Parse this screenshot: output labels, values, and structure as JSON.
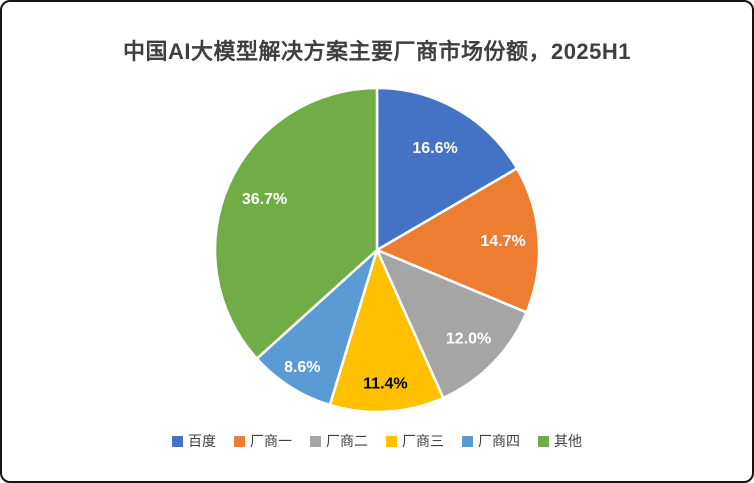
{
  "window": {
    "background": "#ffffff",
    "border_color": "#141414"
  },
  "chart_data": {
    "type": "pie",
    "title": "中国AI大模型解决方案主要厂商市场份额，2025H1",
    "total": 100.0,
    "start_angle_deg": 0,
    "direction": "clockwise",
    "legend_position": "bottom",
    "data_label_format": "percent_one_decimal",
    "slices": [
      {
        "label": "百度",
        "value": 16.6,
        "color": "#4472C4",
        "text_color": "#ffffff",
        "label_radius_frac": 0.72
      },
      {
        "label": "厂商一",
        "value": 14.7,
        "color": "#ED7D31",
        "text_color": "#ffffff",
        "label_radius_frac": 0.78
      },
      {
        "label": "厂商二",
        "value": 12.0,
        "color": "#A5A5A5",
        "text_color": "#ffffff",
        "label_radius_frac": 0.79
      },
      {
        "label": "厂商三",
        "value": 11.4,
        "color": "#FFC000",
        "text_color": "#000000",
        "label_radius_frac": 0.83
      },
      {
        "label": "厂商四",
        "value": 8.6,
        "color": "#5B9BD5",
        "text_color": "#ffffff",
        "label_radius_frac": 0.86
      },
      {
        "label": "其他",
        "value": 36.7,
        "color": "#70AD47",
        "text_color": "#ffffff",
        "label_radius_frac": 0.76
      }
    ]
  }
}
